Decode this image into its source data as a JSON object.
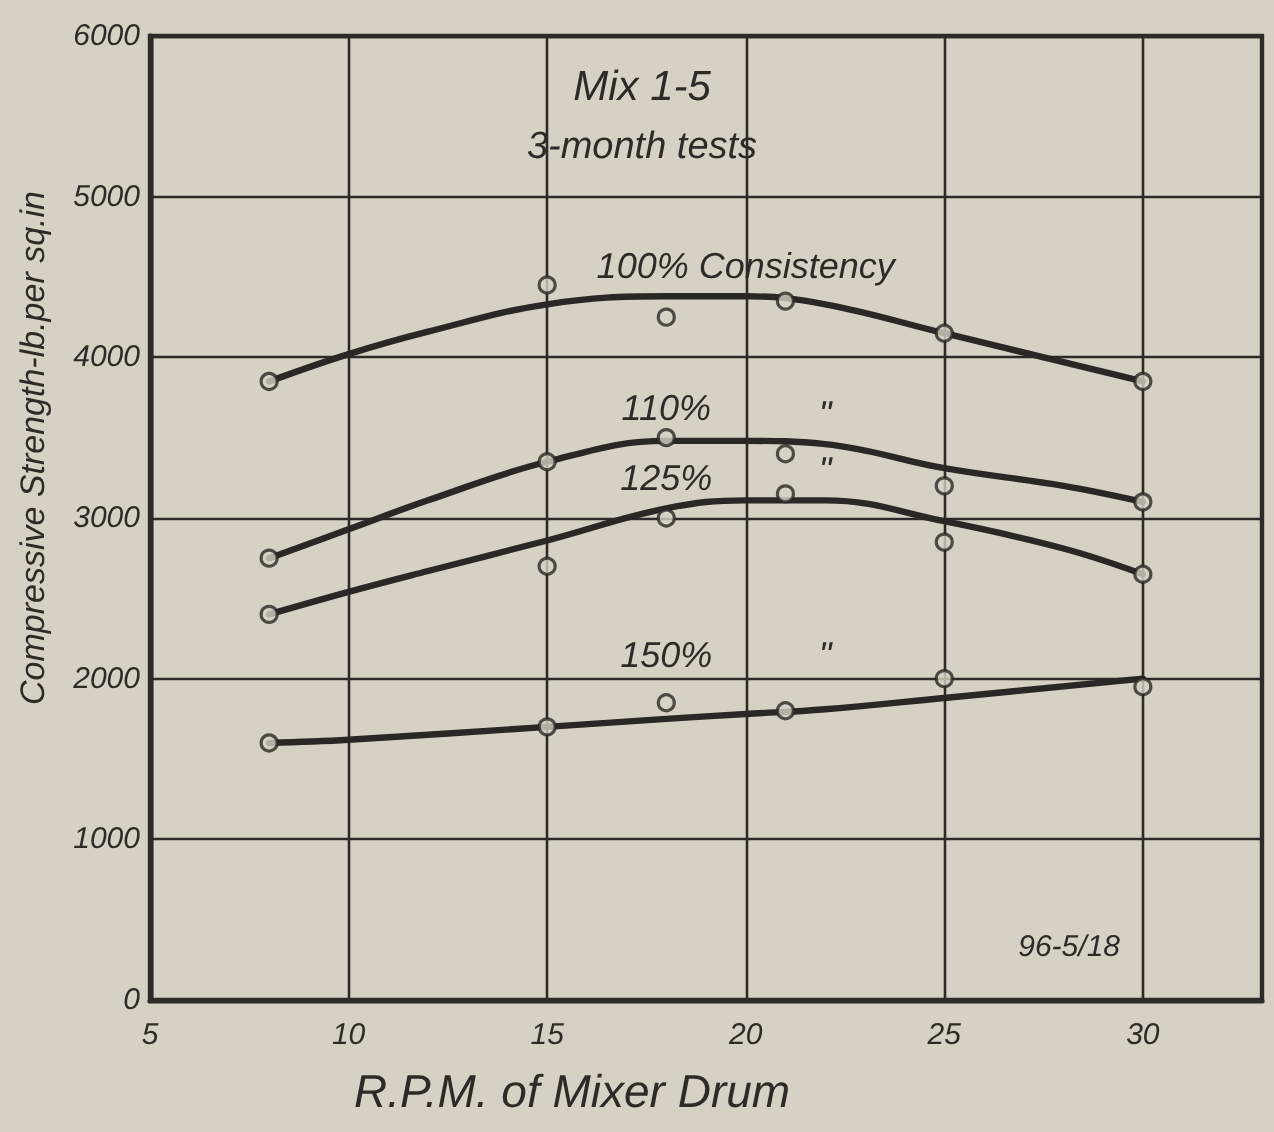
{
  "chart_data": {
    "type": "line",
    "title": "Mix 1-5",
    "subtitle": "3-month tests",
    "xlabel": "R.P.M. of Mixer Drum",
    "ylabel": "Compressive Strength-lb.per sq.in",
    "x": [
      8,
      15,
      18,
      21,
      25,
      30
    ],
    "series": [
      {
        "type": "scatter",
        "marker": "circle",
        "color": "#2b2724",
        "values": [
          3850,
          4450,
          4250,
          4350,
          4150,
          3850
        ]
      },
      {
        "x": [
          8,
          10,
          12,
          15,
          18,
          20,
          22,
          25,
          28,
          30
        ],
        "color": "#2b2724",
        "values": [
          3850,
          4020,
          4160,
          4330,
          4380,
          4380,
          4330,
          4150,
          3970,
          3850
        ]
      },
      {
        "type": "scatter",
        "marker": "circle",
        "color": "#2b2724",
        "values": [
          2750,
          3350,
          3500,
          3400,
          3200,
          3100
        ]
      },
      {
        "x": [
          8,
          10,
          12,
          15,
          18,
          20,
          22,
          25,
          28,
          30
        ],
        "color": "#2b2724",
        "values": [
          2750,
          2930,
          3110,
          3350,
          3480,
          3480,
          3460,
          3310,
          3200,
          3100
        ]
      },
      {
        "type": "scatter",
        "marker": "circle",
        "color": "#2b2724",
        "values": [
          2400,
          2700,
          3000,
          3150,
          2850,
          2650
        ]
      },
      {
        "x": [
          8,
          10,
          12,
          15,
          18,
          20,
          22,
          25,
          28,
          30
        ],
        "color": "#2b2724",
        "values": [
          2400,
          2540,
          2670,
          2860,
          3060,
          3110,
          3110,
          2980,
          2810,
          2650
        ]
      },
      {
        "type": "scatter",
        "marker": "circle",
        "color": "#2b2724",
        "values": [
          1600,
          1700,
          1850,
          1800,
          2000,
          1950
        ]
      },
      {
        "x": [
          8,
          10,
          15,
          18,
          20,
          22,
          25,
          30
        ],
        "color": "#2b2724",
        "values": [
          1600,
          1620,
          1700,
          1750,
          1780,
          1810,
          1880,
          2000
        ]
      }
    ],
    "xlim": [
      5,
      33
    ],
    "xticks": [
      5,
      10,
      15,
      20,
      25,
      30
    ],
    "ylim": [
      0,
      6000
    ],
    "yticks": [
      0,
      1000,
      2000,
      3000,
      4000,
      5000,
      6000
    ],
    "grid": true,
    "marker": "none",
    "line_style": "solid",
    "annotations": [
      {
        "text": "100% Consistency",
        "x": 20,
        "y": 4380
      },
      {
        "text": "110%",
        "x": 18,
        "y": 3500
      },
      {
        "text": "\"",
        "x": 22,
        "y": 3460
      },
      {
        "text": "125%",
        "x": 18,
        "y": 3060
      },
      {
        "text": "\"",
        "x": 22,
        "y": 3110
      },
      {
        "text": "150%",
        "x": 18,
        "y": 1850
      },
      {
        "text": "\"",
        "x": 22,
        "y": 1810
      },
      "96-5/18"
    ]
  }
}
